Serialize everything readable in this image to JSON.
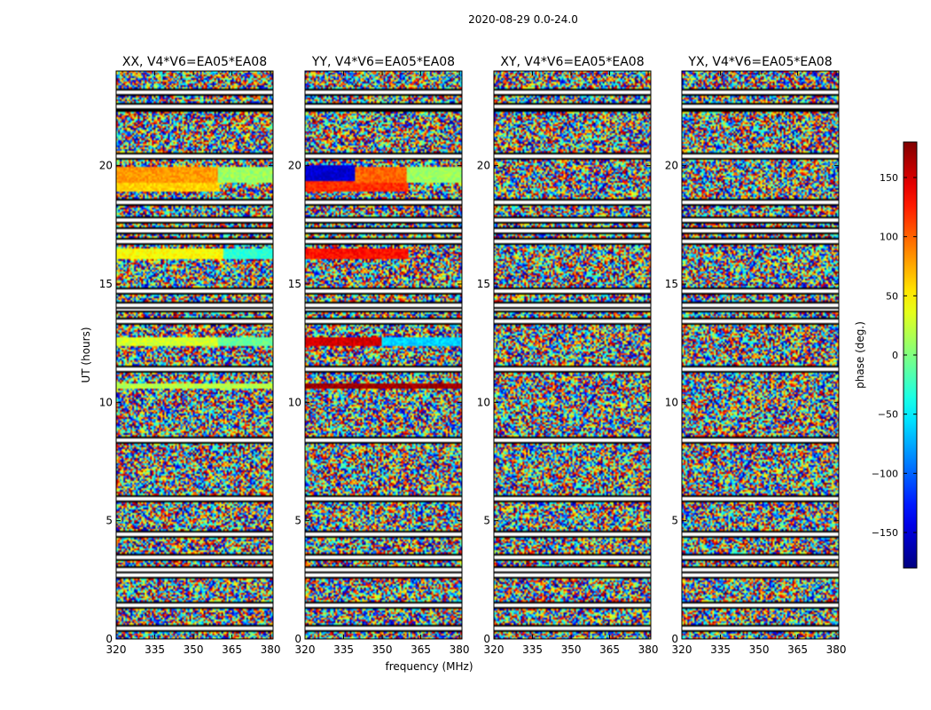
{
  "chart_data": {
    "type": "heatmap",
    "title": "2020-08-29 0.0-24.0",
    "xlabel": "frequency (MHz)",
    "ylabel": "UT (hours)",
    "xlim": [
      320,
      381
    ],
    "ylim": [
      0,
      24
    ],
    "x_ticks": [
      "320",
      "335",
      "350",
      "365",
      "380"
    ],
    "x_tick_values": [
      320,
      335,
      350,
      365,
      380
    ],
    "y_ticks": [
      "0",
      "5",
      "10",
      "15",
      "20"
    ],
    "y_tick_values": [
      0,
      5,
      10,
      15,
      20
    ],
    "panels": [
      {
        "title": "XX, V4*V6=EA05*EA08",
        "coherent_bands": [
          {
            "ut_start": 18.9,
            "ut_end": 19.3,
            "freq_end": 360,
            "phase": 60
          },
          {
            "ut_start": 19.3,
            "ut_end": 19.9,
            "freq_end": 360,
            "phase": 80
          },
          {
            "ut_start": 19.3,
            "ut_end": 19.9,
            "freq_start": 360,
            "freq_end": 381,
            "phase": 10
          },
          {
            "ut_start": 16.1,
            "ut_end": 16.5,
            "freq_end": 362,
            "phase": 45
          },
          {
            "ut_start": 16.1,
            "ut_end": 16.5,
            "freq_start": 362,
            "freq_end": 381,
            "phase": -30
          },
          {
            "ut_start": 12.4,
            "ut_end": 12.7,
            "freq_end": 360,
            "phase": 30
          },
          {
            "ut_start": 12.4,
            "ut_end": 12.7,
            "freq_start": 360,
            "freq_end": 381,
            "phase": -10
          },
          {
            "ut_start": 10.6,
            "ut_end": 10.8,
            "freq_end": 381,
            "phase": 20
          }
        ]
      },
      {
        "title": "YY, V4*V6=EA05*EA08",
        "coherent_bands": [
          {
            "ut_start": 19.3,
            "ut_end": 20.0,
            "freq_end": 340,
            "phase": -150
          },
          {
            "ut_start": 18.9,
            "ut_end": 19.3,
            "freq_end": 360,
            "phase": 120
          },
          {
            "ut_start": 19.3,
            "ut_end": 19.9,
            "freq_start": 340,
            "freq_end": 360,
            "phase": 100
          },
          {
            "ut_start": 19.3,
            "ut_end": 19.9,
            "freq_start": 360,
            "freq_end": 381,
            "phase": 10
          },
          {
            "ut_start": 16.1,
            "ut_end": 16.5,
            "freq_end": 360,
            "phase": 130
          },
          {
            "ut_start": 12.4,
            "ut_end": 12.7,
            "freq_end": 350,
            "phase": 150
          },
          {
            "ut_start": 12.4,
            "ut_end": 12.7,
            "freq_start": 350,
            "freq_end": 381,
            "phase": -60
          },
          {
            "ut_start": 10.6,
            "ut_end": 10.8,
            "freq_end": 381,
            "phase": 170
          }
        ]
      },
      {
        "title": "XY, V4*V6=EA05*EA08",
        "coherent_bands": []
      },
      {
        "title": "YX, V4*V6=EA05*EA08",
        "coherent_bands": []
      }
    ],
    "flagged_rows_ut": [
      0.5,
      1.5,
      2.75,
      3.0,
      3.5,
      4.5,
      6.0,
      8.5,
      11.5,
      13.5,
      14.0,
      14.2,
      14.8,
      16.9,
      17.3,
      17.8,
      18.5,
      20.5,
      22.5,
      22.6,
      23.2
    ],
    "colorbar": {
      "label": "phase (deg.)",
      "range": [
        -180,
        180
      ],
      "ticks": [
        "150",
        "100",
        "50",
        "0",
        "−50",
        "−100",
        "−150"
      ],
      "tick_values": [
        150,
        100,
        50,
        0,
        -50,
        -100,
        -150
      ],
      "colormap": "jet"
    }
  }
}
